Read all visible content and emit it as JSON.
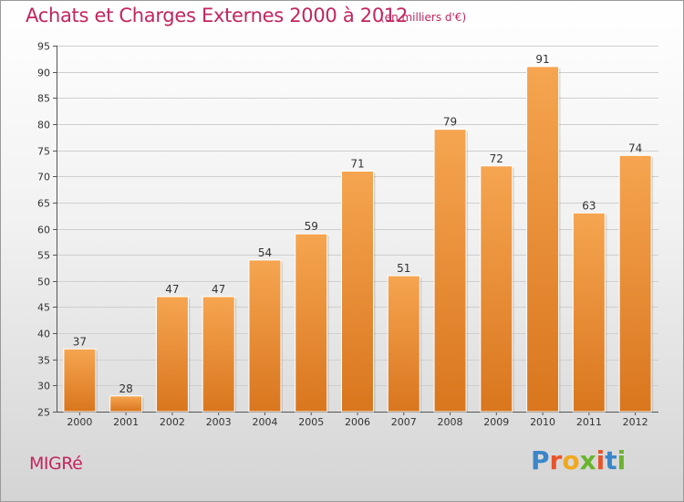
{
  "title": "Achats et Charges Externes 2000 à 2012",
  "subtitle": "(en milliers d'€)",
  "commune": "MIGRé",
  "logo": {
    "letters": [
      "P",
      "r",
      "o",
      "x",
      "i",
      "t",
      "i"
    ],
    "colors": [
      "#3a86c8",
      "#e8542a",
      "#f0a81c",
      "#6ab42d",
      "#e8542a",
      "#3a86c8",
      "#6ab42d"
    ]
  },
  "colors": {
    "accent": "#c3255f",
    "bar_top": "#f6a550",
    "bar_bottom": "#d9761e",
    "grid": "#cfcfcf"
  },
  "chart_data": {
    "type": "bar",
    "categories": [
      "2000",
      "2001",
      "2002",
      "2003",
      "2004",
      "2005",
      "2006",
      "2007",
      "2008",
      "2009",
      "2010",
      "2011",
      "2012"
    ],
    "values": [
      37,
      28,
      47,
      47,
      54,
      59,
      71,
      51,
      79,
      72,
      91,
      63,
      74
    ],
    "ylim": [
      25,
      95
    ],
    "yticks": [
      25,
      30,
      35,
      40,
      45,
      50,
      55,
      60,
      65,
      70,
      75,
      80,
      85,
      90,
      95
    ],
    "grid": true,
    "xlabel": "",
    "ylabel": ""
  }
}
